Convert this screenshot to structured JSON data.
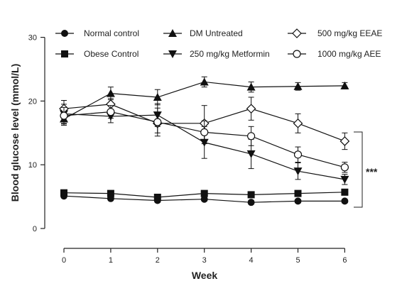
{
  "chart_data": {
    "type": "line",
    "xlabel": "Week",
    "ylabel": "Blood glucose level (mmol/L)",
    "xlim": [
      0,
      6
    ],
    "ylim": [
      0,
      30
    ],
    "x": [
      0,
      1,
      2,
      3,
      4,
      5,
      6
    ],
    "x_ticks": [
      "0",
      "1",
      "2",
      "3",
      "4",
      "5",
      "6"
    ],
    "y_ticks": [
      "0",
      "10",
      "20",
      "30"
    ],
    "grid": false,
    "legend_position": "top",
    "significance_label": "***",
    "series": [
      {
        "name": "Normal control",
        "marker": "circle-filled",
        "color": "#111111",
        "values": [
          5.1,
          4.7,
          4.4,
          4.6,
          4.1,
          4.3,
          4.3
        ],
        "errors": [
          0.3,
          0.3,
          0.3,
          0.3,
          0.3,
          0.3,
          0.3
        ]
      },
      {
        "name": "Obese Control",
        "marker": "square-filled",
        "color": "#111111",
        "values": [
          5.6,
          5.5,
          4.9,
          5.5,
          5.3,
          5.5,
          5.7
        ],
        "errors": [
          0.3,
          0.3,
          0.3,
          0.3,
          0.3,
          0.3,
          0.3
        ]
      },
      {
        "name": "DM Untreated",
        "marker": "triangle-up-filled",
        "color": "#111111",
        "values": [
          17.2,
          21.2,
          20.6,
          23.0,
          22.2,
          22.3,
          22.4
        ],
        "errors": [
          1.0,
          1.0,
          1.2,
          0.8,
          0.8,
          0.6,
          0.5
        ]
      },
      {
        "name": "250 mg/kg Metformin",
        "marker": "triangle-down-filled",
        "color": "#111111",
        "values": [
          18.0,
          17.6,
          17.8,
          13.5,
          11.7,
          9.0,
          7.7
        ],
        "errors": [
          1.5,
          1.0,
          1.8,
          2.5,
          2.3,
          1.3,
          0.8
        ]
      },
      {
        "name": "500 mg/kg EEAE",
        "marker": "diamond-open",
        "color": "#111111",
        "values": [
          18.8,
          19.5,
          16.5,
          16.5,
          18.8,
          16.5,
          13.7
        ],
        "errors": [
          1.3,
          0.9,
          1.5,
          2.8,
          1.8,
          1.5,
          1.3
        ]
      },
      {
        "name": "1000 mg/kg AEE",
        "marker": "circle-open",
        "color": "#111111",
        "values": [
          17.7,
          18.3,
          16.7,
          15.1,
          14.5,
          11.6,
          9.6
        ],
        "errors": [
          1.3,
          1.0,
          2.2,
          1.8,
          1.5,
          1.2,
          0.8
        ]
      }
    ]
  }
}
